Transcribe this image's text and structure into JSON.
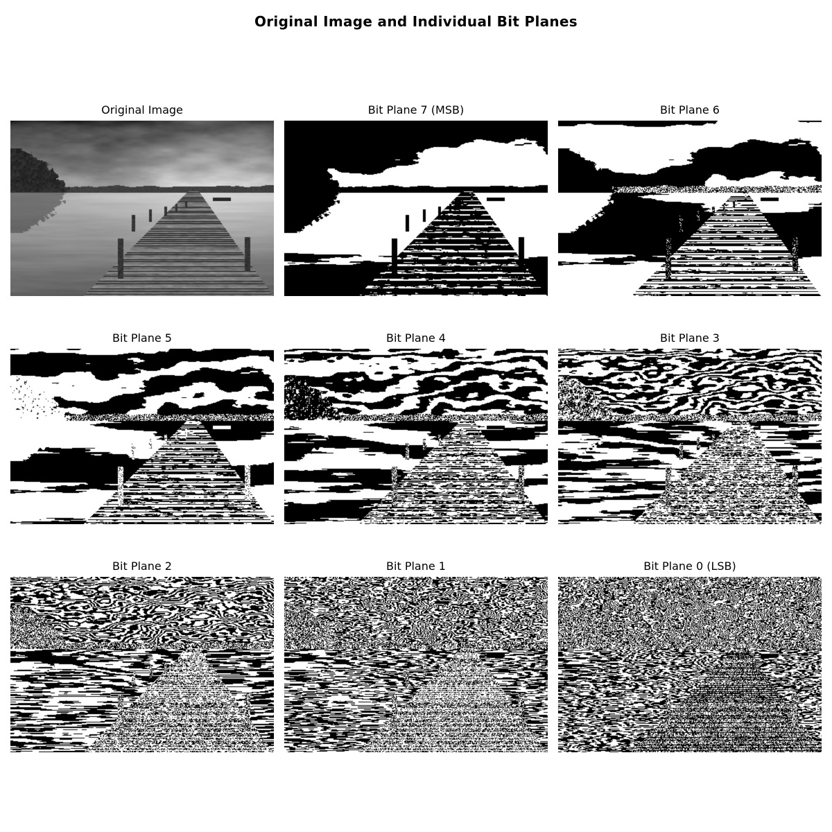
{
  "figure": {
    "title": "Original Image and Individual Bit Planes"
  },
  "panels": [
    {
      "title": "Original Image",
      "kind": "original"
    },
    {
      "title": "Bit Plane 7 (MSB)",
      "kind": "bitplane",
      "bit": 7
    },
    {
      "title": "Bit Plane 6",
      "kind": "bitplane",
      "bit": 6
    },
    {
      "title": "Bit Plane 5",
      "kind": "bitplane",
      "bit": 5
    },
    {
      "title": "Bit Plane 4",
      "kind": "bitplane",
      "bit": 4
    },
    {
      "title": "Bit Plane 3",
      "kind": "bitplane",
      "bit": 3
    },
    {
      "title": "Bit Plane 2",
      "kind": "bitplane",
      "bit": 2
    },
    {
      "title": "Bit Plane 1",
      "kind": "bitplane",
      "bit": 1
    },
    {
      "title": "Bit Plane 0 (LSB)",
      "kind": "bitplane",
      "bit": 0
    }
  ]
}
